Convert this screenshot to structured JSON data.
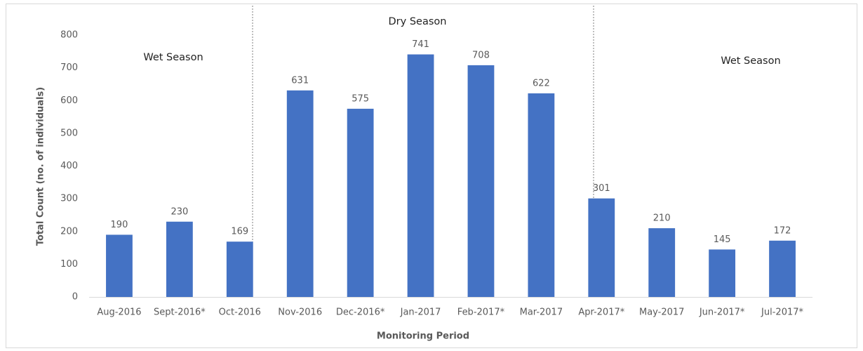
{
  "chart_data": {
    "type": "bar",
    "x_label": "Monitoring Period",
    "y_label": "Total Count (no. of individuals)",
    "categories": [
      "Aug-2016",
      "Sept-2016*",
      "Oct-2016",
      "Nov-2016",
      "Dec-2016*",
      "Jan-2017",
      "Feb-2017*",
      "Mar-2017",
      "Apr-2017*",
      "May-2017",
      "Jun-2017*",
      "Jul-2017*"
    ],
    "values": [
      190,
      230,
      169,
      631,
      575,
      741,
      708,
      622,
      301,
      210,
      145,
      172
    ],
    "color": "#4472c4",
    "ylim": [
      0,
      800
    ],
    "yticks": [
      0,
      100,
      200,
      300,
      400,
      500,
      600,
      700,
      800
    ],
    "grid": false,
    "annotations": [
      "Wet Season",
      "Dry Season",
      "Wet Season"
    ]
  }
}
